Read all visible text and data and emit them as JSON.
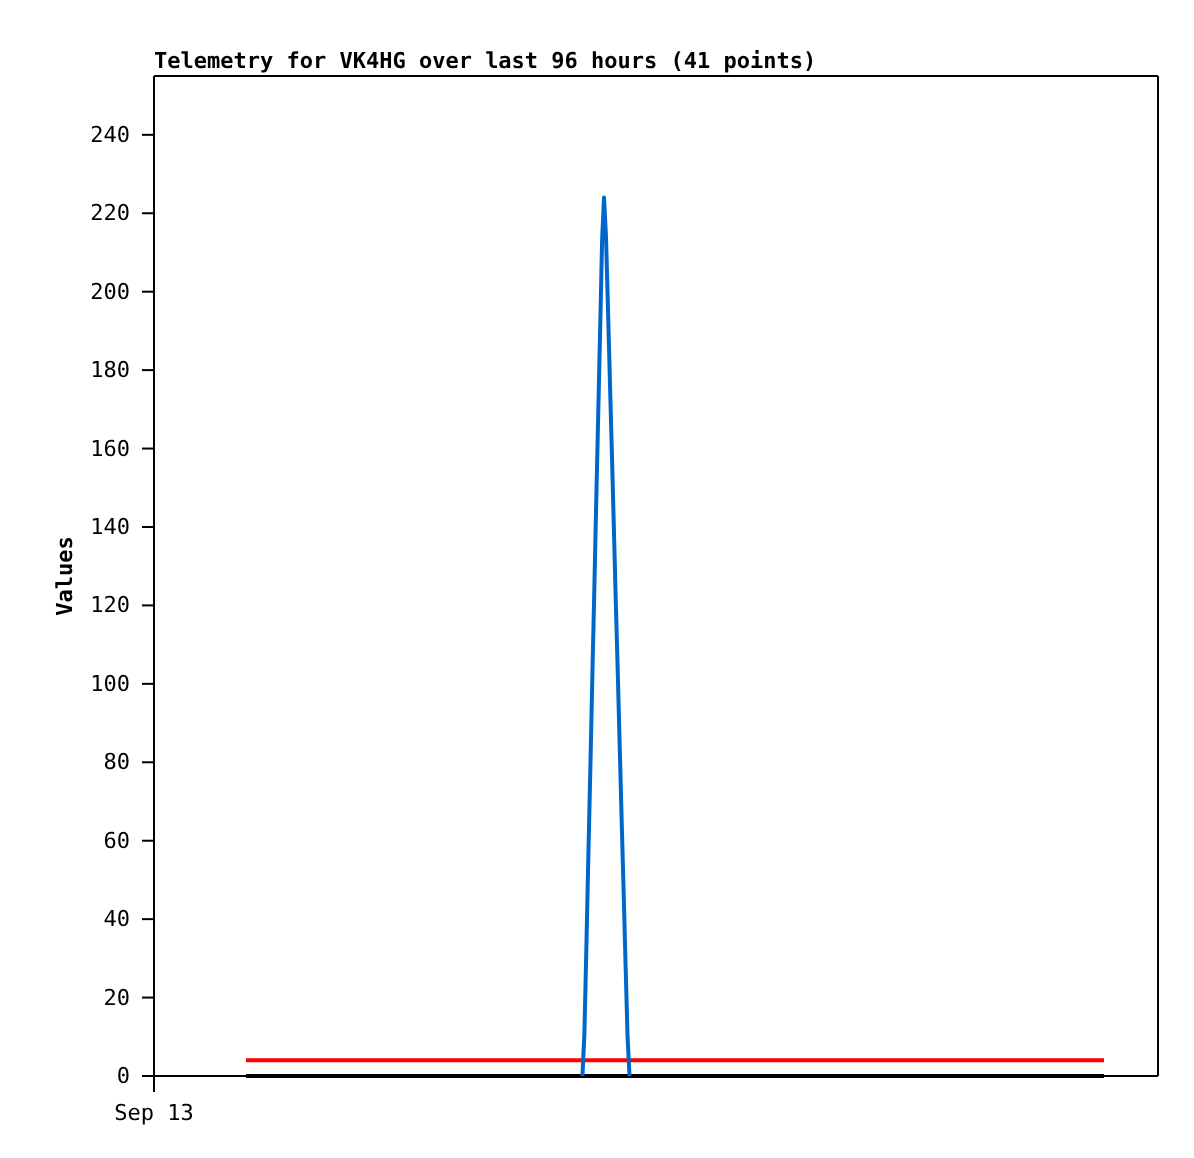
{
  "chart_data": {
    "type": "line",
    "title": "Telemetry for VK4HG over last 96 hours (41 points)",
    "ylabel": "Values",
    "annotations": [
      "Sep 13"
    ],
    "categories": [
      null,
      null,
      null,
      null,
      null,
      null,
      null,
      null,
      null,
      null,
      null,
      null,
      null,
      null,
      null,
      null,
      null,
      null,
      null,
      null,
      null,
      null,
      null,
      null,
      null,
      null,
      null,
      null,
      null,
      null,
      null,
      null,
      null,
      null,
      null,
      null,
      null,
      null,
      null,
      null,
      null,
      null,
      null,
      null,
      null,
      null,
      null,
      null,
      null,
      null,
      null,
      null,
      null,
      null,
      null,
      null,
      null,
      null,
      null,
      null,
      null,
      null,
      null,
      null,
      null,
      null,
      null,
      null,
      null,
      null,
      null,
      null,
      null,
      null,
      null,
      null,
      null,
      null,
      null,
      null,
      null,
      null,
      null,
      null,
      null,
      null,
      null,
      null,
      null,
      null,
      null,
      null,
      null,
      null,
      null,
      null,
      null,
      null,
      null,
      null,
      null,
      null,
      null,
      null,
      null,
      null,
      null,
      null,
      null,
      null,
      null,
      null,
      null,
      null,
      null,
      null,
      null,
      null,
      null,
      null,
      null,
      null,
      null,
      null,
      null,
      null,
      null,
      null,
      null,
      null,
      null,
      null,
      null,
      null,
      null,
      null,
      null,
      null,
      null,
      null,
      null,
      null,
      null,
      null,
      null,
      null,
      null,
      null,
      null,
      null,
      null,
      null,
      null,
      null,
      null,
      null,
      null,
      null,
      null,
      null,
      null,
      null,
      null,
      null,
      null,
      null,
      null,
      null,
      null,
      null,
      null,
      null,
      null,
      null,
      null,
      null,
      null,
      null,
      null,
      null,
      null,
      null,
      null,
      null,
      null,
      null,
      null,
      null,
      null,
      null,
      null,
      null,
      null,
      null,
      null,
      null,
      null,
      null,
      null,
      null,
      null,
      null,
      null,
      null,
      null,
      null,
      null,
      null,
      null,
      null,
      null,
      null,
      null,
      null,
      null,
      null,
      null,
      null,
      null,
      null,
      null,
      null,
      null,
      null,
      null,
      null,
      null,
      null,
      null,
      null,
      null,
      null,
      null,
      null,
      null,
      null,
      null,
      null,
      null,
      null,
      null,
      null,
      null,
      null,
      null,
      null,
      null,
      null,
      null,
      null,
      null,
      null,
      null,
      null,
      null,
      null,
      null,
      null,
      null,
      null,
      null,
      null,
      null,
      null,
      null,
      null,
      null,
      null,
      null,
      null,
      null,
      null,
      null,
      null,
      null,
      null,
      null,
      null,
      null,
      null,
      null,
      null,
      null,
      null,
      null,
      null,
      null,
      null,
      null,
      null,
      null,
      null,
      null,
      null,
      null,
      null,
      null,
      null,
      null,
      null,
      null,
      null,
      null,
      null,
      null,
      null,
      null,
      null,
      null,
      null,
      null,
      null,
      null,
      null,
      null,
      null,
      null,
      null,
      null,
      null,
      null,
      null,
      null,
      null,
      null,
      null,
      null,
      null,
      null,
      null,
      null,
      null,
      null,
      null,
      null,
      null,
      null,
      null,
      null,
      null,
      null,
      null,
      null,
      null,
      null,
      null,
      null,
      null,
      null,
      null,
      null,
      null,
      null,
      null,
      null,
      null,
      null,
      null,
      null,
      null,
      null,
      null,
      null,
      null,
      null,
      null,
      null,
      null,
      null,
      null,
      null,
      null,
      null,
      null,
      null,
      null,
      null,
      null,
      null,
      null,
      null,
      null,
      null,
      null,
      null,
      null,
      null,
      null,
      null,
      null,
      null,
      null,
      null,
      null,
      null,
      null,
      null,
      null,
      null,
      null,
      null,
      null,
      null,
      null,
      null,
      null,
      null,
      null,
      null,
      null,
      null,
      null,
      null,
      null,
      null,
      null,
      null,
      null,
      null,
      null,
      null,
      null,
      null,
      null,
      null,
      null,
      null,
      null,
      null,
      null,
      null,
      null,
      null,
      null,
      null,
      null,
      null,
      null,
      null,
      null,
      null,
      null,
      null,
      null,
      null,
      null,
      null,
      null,
      null,
      null,
      null,
      null,
      null,
      null,
      null,
      null,
      null,
      null,
      null,
      null,
      null,
      null,
      null,
      null,
      null,
      null,
      null,
      null,
      null,
      null,
      null,
      null,
      null,
      null,
      null,
      null,
      null,
      null,
      null,
      null,
      null,
      null,
      null,
      null,
      null,
      null,
      null,
      null,
      null,
      null,
      null,
      null,
      null,
      null,
      null,
      null,
      null,
      null,
      null,
      null,
      null,
      null,
      null,
      null,
      null,
      null,
      null,
      null,
      null,
      null,
      null,
      null
    ],
    "ylim": [
      0,
      255
    ],
    "yticks": [
      0,
      20,
      40,
      60,
      80,
      100,
      120,
      140,
      160,
      180,
      200,
      220,
      240
    ],
    "grid": false,
    "ref_lines": [
      {
        "axis": "y",
        "value": 4,
        "color": "#ff0000"
      },
      {
        "axis": "y",
        "value": 0,
        "color": "#000000"
      }
    ],
    "series": [
      {
        "color": "#0066cc",
        "values": [
          null,
          null,
          null,
          null,
          null,
          null,
          null,
          null,
          null,
          null,
          null,
          null,
          null,
          null,
          null,
          null,
          null,
          null,
          null,
          null,
          null,
          null,
          null,
          null,
          null,
          null,
          null,
          null,
          null,
          null,
          null,
          null,
          null,
          null,
          null,
          null,
          null,
          null,
          null,
          null,
          null,
          null,
          null,
          null,
          null,
          null,
          null,
          null,
          null,
          null,
          null,
          null,
          null,
          null,
          null,
          null,
          null,
          null,
          null,
          null,
          null,
          null,
          null,
          null,
          null,
          null,
          null,
          null,
          null,
          null,
          null,
          null,
          null,
          null,
          null,
          null,
          null,
          null,
          null,
          null,
          null,
          null,
          null,
          null,
          null,
          null,
          null,
          null,
          null,
          null,
          null,
          null,
          null,
          null,
          null,
          null,
          null,
          null,
          null,
          null,
          null,
          null,
          null,
          null,
          null,
          null,
          null,
          null,
          null,
          null,
          null,
          null,
          null,
          null,
          null,
          null,
          null,
          null,
          null,
          null,
          null,
          null,
          null,
          null,
          null,
          null,
          null,
          null,
          null,
          null,
          null,
          null,
          null,
          null,
          null,
          null,
          null,
          null,
          null,
          null,
          null,
          null,
          null,
          null,
          null,
          null,
          null,
          null,
          null,
          null,
          null,
          null,
          null,
          null,
          null,
          null,
          null,
          null,
          null,
          null,
          null,
          null,
          null,
          null,
          null,
          null,
          null,
          null,
          null,
          null,
          null,
          null,
          null,
          null,
          null,
          null,
          null,
          null,
          null,
          null,
          null,
          null,
          null,
          null,
          null,
          null,
          null,
          null,
          null,
          null,
          null,
          null,
          null,
          null,
          null,
          null,
          null,
          null,
          null,
          null,
          null,
          null,
          null,
          null,
          null,
          null,
          null,
          null,
          null,
          null,
          null,
          null,
          null,
          null,
          null,
          null,
          null,
          null,
          0,
          11,
          33,
          56,
          78,
          101,
          123,
          146,
          168,
          190,
          213,
          224,
          214,
          196,
          177,
          159,
          140,
          121,
          103,
          84,
          65,
          47,
          28,
          10,
          0,
          null,
          null,
          null,
          null,
          null,
          null,
          null,
          null,
          null,
          null,
          null,
          null,
          null,
          null,
          null,
          null,
          null,
          null,
          null,
          null,
          null,
          null,
          null,
          null,
          null,
          null,
          null,
          null,
          null,
          null,
          null,
          null,
          null,
          null,
          null,
          null,
          null,
          null,
          null,
          null,
          null,
          null,
          null,
          null,
          null,
          null,
          null,
          null,
          null,
          null,
          null,
          null,
          null,
          null,
          null,
          null,
          null,
          null,
          null,
          null,
          null,
          null,
          null,
          null,
          null,
          null,
          null,
          null,
          null,
          null,
          null,
          null,
          null,
          null,
          null,
          null,
          null,
          null,
          null,
          null,
          null,
          null,
          null,
          null,
          null,
          null,
          null,
          null,
          null,
          null,
          null,
          null,
          null,
          null,
          null,
          null,
          null,
          null,
          null,
          null,
          null,
          null,
          null,
          null,
          null,
          null,
          null,
          null,
          null,
          null,
          null,
          null,
          null,
          null,
          null,
          null,
          null,
          null,
          null,
          null,
          null,
          null,
          null,
          null,
          null,
          null,
          null,
          null,
          null,
          null,
          null,
          null,
          null,
          null,
          null,
          null,
          null,
          null,
          null,
          null,
          null,
          null,
          null,
          null,
          null,
          null,
          null,
          null,
          null,
          null,
          null,
          null,
          null,
          null,
          null,
          null,
          null,
          null,
          null,
          null,
          null,
          null,
          null,
          null,
          null,
          null,
          null,
          null,
          null,
          null,
          null,
          null,
          null,
          null,
          null,
          null,
          null,
          null,
          null,
          null,
          null,
          null,
          null,
          null,
          null,
          null,
          null,
          null,
          null,
          null,
          null,
          null,
          null,
          null,
          null,
          null,
          null,
          null,
          null,
          null,
          null,
          null,
          null,
          null,
          null,
          null,
          null,
          null,
          null,
          null,
          null,
          null,
          null,
          null,
          null,
          null,
          null,
          null,
          null,
          null,
          null,
          null,
          null,
          null,
          null,
          null,
          null,
          null,
          null,
          null,
          null,
          null,
          null,
          null,
          null,
          null,
          null,
          null,
          null,
          null,
          null,
          null,
          null,
          null,
          null,
          null,
          null,
          null,
          null,
          null,
          null,
          null,
          null,
          null,
          null,
          null,
          null,
          null,
          null,
          null,
          null,
          null,
          null,
          null,
          null,
          null,
          null,
          null,
          null
        ]
      }
    ]
  }
}
